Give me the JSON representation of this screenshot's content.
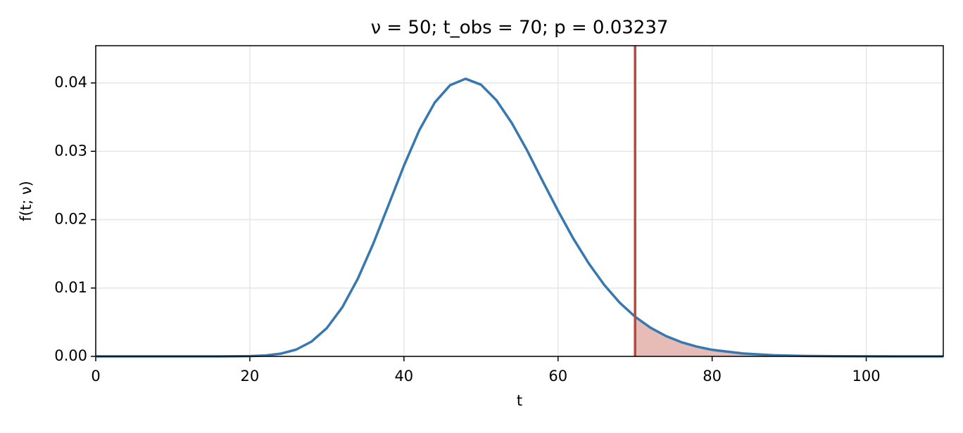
{
  "chart_data": {
    "type": "line",
    "title": "ν = 50; t_obs = 70; p = 0.03237",
    "xlabel": "t",
    "ylabel": "f(t; ν)",
    "x": [
      0,
      10,
      16,
      20,
      22,
      24,
      26,
      28,
      30,
      32,
      34,
      36,
      38,
      40,
      42,
      44,
      46,
      48,
      50,
      52,
      54,
      56,
      58,
      60,
      62,
      64,
      66,
      68,
      70,
      72,
      74,
      76,
      78,
      80,
      84,
      88,
      92,
      96,
      100,
      110
    ],
    "series": [
      {
        "color": "#3878b0",
        "values": [
          0,
          0,
          1.3e-06,
          3.7e-05,
          0.000133,
          0.000394,
          0.00099,
          0.00216,
          0.00415,
          0.00718,
          0.01133,
          0.01644,
          0.02213,
          0.0279,
          0.0331,
          0.03714,
          0.03968,
          0.04061,
          0.03975,
          0.03747,
          0.03414,
          0.0301,
          0.02565,
          0.0213,
          0.0172,
          0.01358,
          0.01045,
          0.00786,
          0.0058,
          0.0042,
          0.00298,
          0.00208,
          0.00143,
          0.00096,
          0.00042,
          0.00017,
          7e-05,
          3e-05,
          1e-05,
          0
        ]
      }
    ],
    "t_obs": 70,
    "line_color": "#b8473e",
    "fill_color": "#e8bcb6",
    "xlim": [
      0,
      110
    ],
    "xticks": [
      0,
      20,
      40,
      60,
      80,
      100
    ],
    "ylim": [
      0,
      0.04545
    ],
    "yticks": [
      {
        "value": 0,
        "label": "0.00"
      },
      {
        "value": 0.01,
        "label": "0.01"
      },
      {
        "value": 0.02,
        "label": "0.02"
      },
      {
        "value": 0.03,
        "label": "0.03"
      },
      {
        "value": 0.04,
        "label": "0.04"
      }
    ],
    "grid": true
  }
}
